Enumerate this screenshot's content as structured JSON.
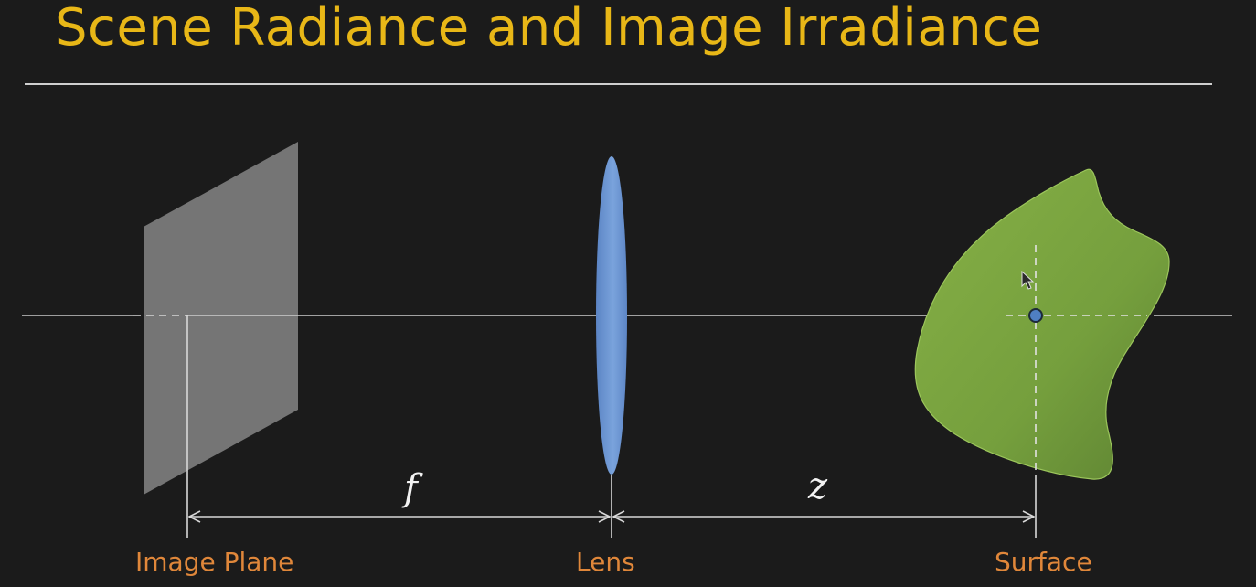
{
  "title": "Scene Radiance and Image Irradiance",
  "labels": {
    "image_plane": "Image Plane",
    "lens": "Lens",
    "surface": "Surface"
  },
  "variables": {
    "focal_length": "f",
    "depth": "z"
  },
  "colors": {
    "title": "#e8b717",
    "label": "#e0873a",
    "lens": "#6d96d0",
    "surface": "#7fa83f",
    "image_plane": "#8a8a8a",
    "background": "#1b1b1b"
  },
  "icons": {
    "cursor": "mouse-pointer-icon"
  }
}
